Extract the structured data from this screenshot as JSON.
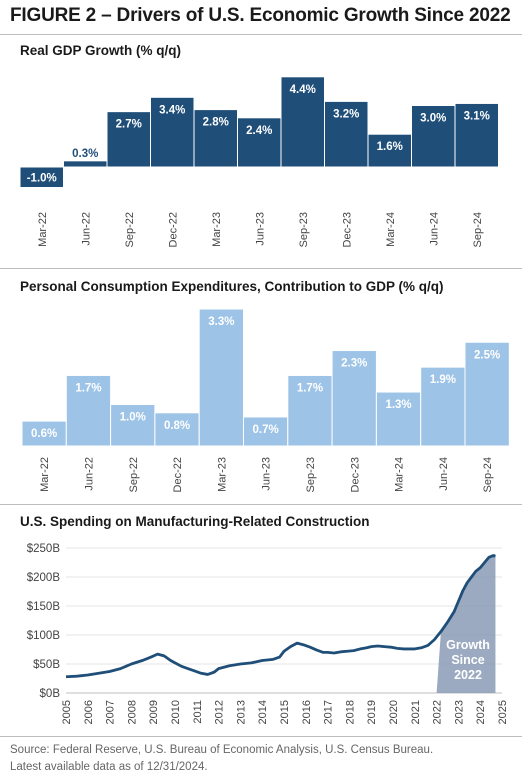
{
  "figure_title": "FIGURE 2 – Drivers of U.S. Economic Growth Since 2022",
  "source_line1": "Source: Federal Reserve, U.S. Bureau of Economic Analysis, U.S. Census Bureau.",
  "source_line2": "Latest available data as of 12/31/2024.",
  "colors": {
    "gdp_bar": "#1f4e79",
    "pce_bar": "#9dc3e6",
    "line": "#1f4e79",
    "shade": "#8a9bb5"
  },
  "chart_data": [
    {
      "type": "bar",
      "title": "Real GDP Growth (% q/q)",
      "categories": [
        "Mar-22",
        "Jun-22",
        "Sep-22",
        "Dec-22",
        "Mar-23",
        "Jun-23",
        "Sep-23",
        "Dec-23",
        "Mar-24",
        "Jun-24",
        "Sep-24"
      ],
      "values": [
        -1.0,
        0.3,
        2.7,
        3.4,
        2.8,
        2.4,
        4.4,
        3.2,
        1.6,
        3.0,
        3.1
      ],
      "labels": [
        "-1.0%",
        "0.3%",
        "2.7%",
        "3.4%",
        "2.8%",
        "2.4%",
        "4.4%",
        "3.2%",
        "1.6%",
        "3.0%",
        "3.1%"
      ],
      "xlabel": "",
      "ylabel": ""
    },
    {
      "type": "bar",
      "title": "Personal Consumption Expenditures, Contribution to GDP (% q/q)",
      "categories": [
        "Mar-22",
        "Jun-22",
        "Sep-22",
        "Dec-22",
        "Mar-23",
        "Jun-23",
        "Sep-23",
        "Dec-23",
        "Mar-24",
        "Jun-24",
        "Sep-24"
      ],
      "values": [
        0.6,
        1.7,
        1.0,
        0.8,
        3.3,
        0.7,
        1.7,
        2.3,
        1.3,
        1.9,
        2.5
      ],
      "labels": [
        "0.6%",
        "1.7%",
        "1.0%",
        "0.8%",
        "3.3%",
        "0.7%",
        "1.7%",
        "2.3%",
        "1.3%",
        "1.9%",
        "2.5%"
      ],
      "xlabel": "",
      "ylabel": ""
    },
    {
      "type": "line",
      "title": "U.S. Spending on Manufacturing-Related Construction",
      "x_ticks": [
        "2005",
        "2006",
        "2007",
        "2008",
        "2009",
        "2010",
        "2011",
        "2012",
        "2013",
        "2014",
        "2015",
        "2016",
        "2017",
        "2018",
        "2019",
        "2020",
        "2021",
        "2022",
        "2023",
        "2024",
        "2025"
      ],
      "y_ticks": [
        "$0B",
        "$50B",
        "$100B",
        "$150B",
        "$200B",
        "$250B"
      ],
      "ylim": [
        0,
        250
      ],
      "xlim": [
        2005,
        2025
      ],
      "annotation": "Growth Since 2022",
      "shaded_range": [
        2022,
        2024.7
      ],
      "x": [
        2005.0,
        2005.5,
        2006.0,
        2006.5,
        2007.0,
        2007.5,
        2008.0,
        2008.5,
        2008.9,
        2009.2,
        2009.5,
        2009.8,
        2010.0,
        2010.3,
        2010.6,
        2010.9,
        2011.2,
        2011.5,
        2011.8,
        2012.0,
        2012.5,
        2013.0,
        2013.5,
        2014.0,
        2014.5,
        2014.8,
        2015.0,
        2015.3,
        2015.6,
        2015.9,
        2016.2,
        2016.5,
        2016.8,
        2017.0,
        2017.3,
        2017.6,
        2017.9,
        2018.2,
        2018.5,
        2018.8,
        2019.0,
        2019.3,
        2019.6,
        2019.9,
        2020.2,
        2020.5,
        2020.8,
        2021.0,
        2021.3,
        2021.6,
        2021.9,
        2022.2,
        2022.5,
        2022.8,
        2023.0,
        2023.2,
        2023.4,
        2023.6,
        2023.8,
        2024.0,
        2024.2,
        2024.4,
        2024.6,
        2024.7
      ],
      "y": [
        28,
        29,
        31,
        34,
        37,
        42,
        50,
        56,
        62,
        67,
        64,
        56,
        52,
        46,
        42,
        38,
        34,
        32,
        36,
        42,
        47,
        50,
        52,
        56,
        58,
        62,
        72,
        80,
        86,
        83,
        79,
        74,
        70,
        70,
        69,
        71,
        72,
        73,
        76,
        78,
        80,
        81,
        80,
        79,
        77,
        76,
        76,
        76,
        78,
        82,
        92,
        106,
        122,
        140,
        158,
        176,
        190,
        200,
        210,
        216,
        225,
        234,
        237,
        236
      ]
    }
  ]
}
